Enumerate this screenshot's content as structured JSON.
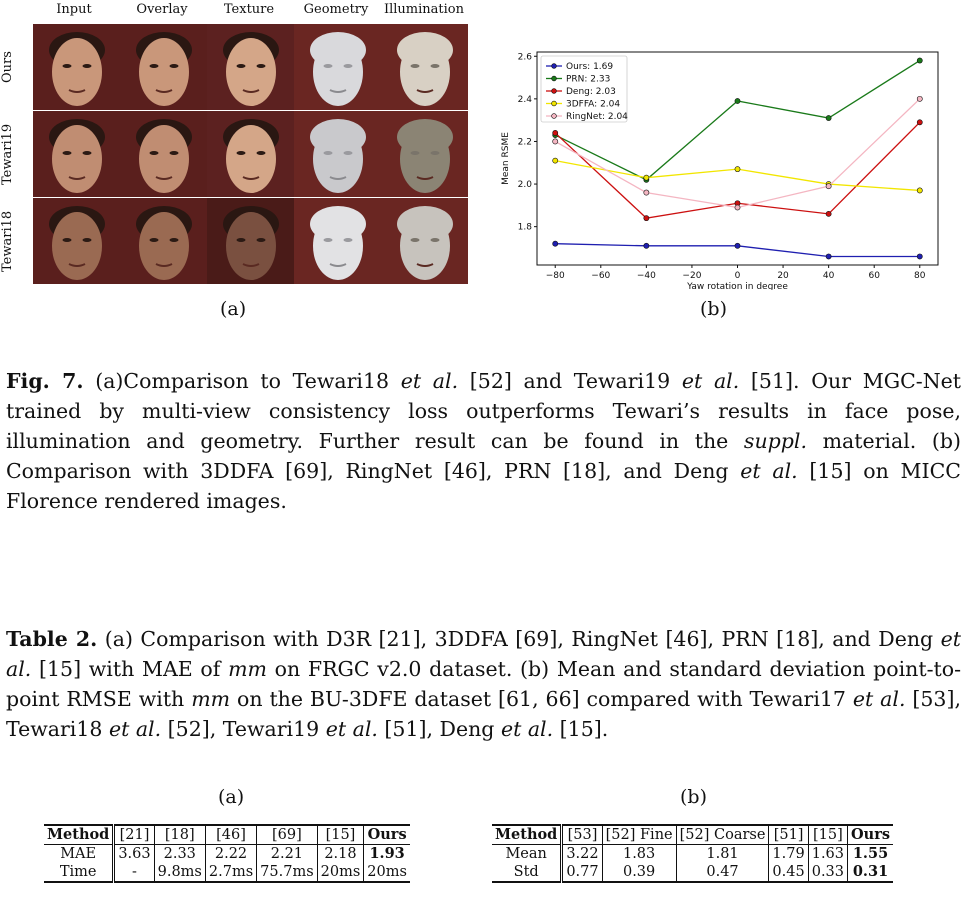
{
  "figure": {
    "columns": [
      "Input",
      "Overlay",
      "Texture",
      "Geometry",
      "Illumination"
    ],
    "rows": [
      "Ours",
      "Tewari19",
      "Tewari18"
    ],
    "sub_a": "(a)",
    "sub_b": "(b)"
  },
  "chart_data": {
    "type": "line",
    "xlabel": "Yaw rotation in degree",
    "ylabel": "Mean RSME",
    "x": [
      -80,
      -40,
      0,
      40,
      80
    ],
    "xticks": [
      "−80",
      "−60",
      "−40",
      "−20",
      "0",
      "20",
      "40",
      "60",
      "80"
    ],
    "yticks": [
      "1.8",
      "2.0",
      "2.2",
      "2.4",
      "2.6"
    ],
    "xlim": [
      -88,
      88
    ],
    "ylim": [
      1.62,
      2.62
    ],
    "legend_position": "top-left",
    "series": [
      {
        "name": "Ours: 1.69",
        "color": "#1f1fb0",
        "values": [
          1.72,
          1.71,
          1.71,
          1.66,
          1.66
        ]
      },
      {
        "name": "PRN: 2.33",
        "color": "#1a7a1a",
        "values": [
          2.23,
          2.02,
          2.39,
          2.31,
          2.58
        ]
      },
      {
        "name": "Deng: 2.03",
        "color": "#cc1010",
        "values": [
          2.24,
          1.84,
          1.91,
          1.86,
          2.29
        ]
      },
      {
        "name": "3DFFA: 2.04",
        "color": "#f2e600",
        "values": [
          2.11,
          2.03,
          2.07,
          2.0,
          1.97
        ]
      },
      {
        "name": "RingNet: 2.04",
        "color": "#f4b6c2",
        "values": [
          2.2,
          1.96,
          1.89,
          1.99,
          2.4
        ]
      }
    ]
  },
  "captions": {
    "fig7_label": "Fig. 7.",
    "fig7_text": " (a)Comparison to Tewari18 ",
    "etal": "et al.",
    "fig7_p2": " [52] and Tewari19 ",
    "fig7_p3": " [51]. Our MGC-Net trained by multi-view consistency loss outperforms Tewari’s results in face pose, illumination and geometry. Further result can be found in the ",
    "suppl": "suppl.",
    "fig7_p4": " material. (b) Comparison with 3DDFA [69], RingNet [46], PRN [18], and Deng ",
    "fig7_p5": " [15] on MICC Florence rendered images.",
    "tab2_label": "Table 2.",
    "tab2_p1": " (a) Comparison with D3R [21], 3DDFA [69], RingNet [46], PRN [18], and Deng ",
    "tab2_p2": " [15] with MAE of ",
    "mm": "mm",
    "tab2_p3": " on FRGC v2.0 dataset. (b) Mean and standard deviation point-to-point RMSE with ",
    "tab2_p4": " on the BU-3DFE dataset [61, 66] compared with Tewari17 ",
    "tab2_p5": " [53], Tewari18 ",
    "tab2_p6": " [52], Tewari19 ",
    "tab2_p7": " [51], Deng ",
    "tab2_p8": " [15]."
  },
  "table_a": {
    "label": "(a)",
    "headers": [
      "Method",
      "[21]",
      "[18]",
      "[46]",
      "[69]",
      "[15]",
      "Ours"
    ],
    "rows": [
      [
        "MAE",
        "3.63",
        "2.33",
        "2.22",
        "2.21",
        "2.18",
        "1.93"
      ],
      [
        "Time",
        "-",
        "9.8ms",
        "2.7ms",
        "75.7ms",
        "20ms",
        "20ms"
      ]
    ]
  },
  "table_b": {
    "label": "(b)",
    "headers": [
      "Method",
      "[53]",
      "[52] Fine",
      "[52] Coarse",
      "[51]",
      "[15]",
      "Ours"
    ],
    "rows": [
      [
        "Mean",
        "3.22",
        "1.83",
        "1.81",
        "1.79",
        "1.63",
        "1.55"
      ],
      [
        "Std",
        "0.77",
        "0.39",
        "0.47",
        "0.45",
        "0.33",
        "0.31"
      ]
    ]
  }
}
